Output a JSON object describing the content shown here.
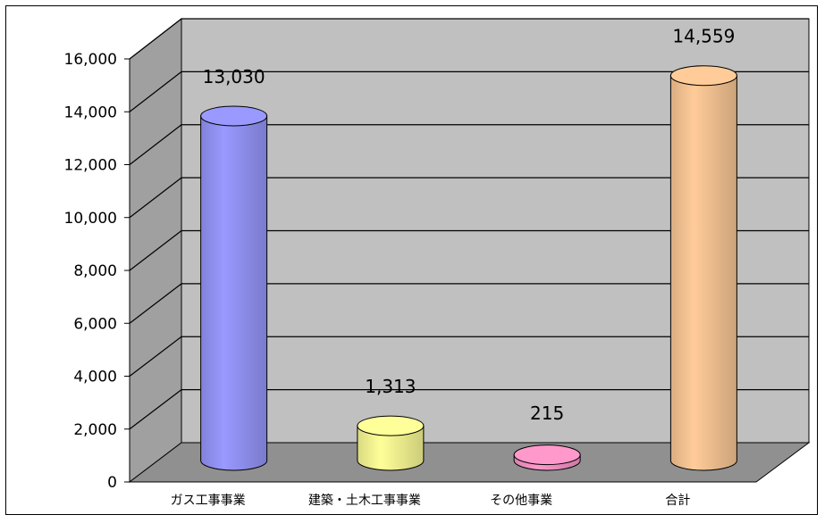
{
  "chart_data": {
    "type": "bar",
    "style": "3d-cylinder",
    "categories": [
      "ガス工事事業",
      "建築・土木工事事業",
      "その他事業",
      "合計"
    ],
    "values": [
      13030,
      1313,
      215,
      14559
    ],
    "data_labels": [
      "13,030",
      "1,313",
      "215",
      "14,559"
    ],
    "yticks": [
      "0",
      "2,000",
      "4,000",
      "6,000",
      "8,000",
      "10,000",
      "12,000",
      "14,000",
      "16,000"
    ],
    "ylim": [
      0,
      16000
    ],
    "grid": true,
    "legend": "none",
    "colors": {
      "bars": [
        "#9999ff",
        "#ffff99",
        "#ff99cc",
        "#ffcc99"
      ],
      "wall": "#c0c0c0",
      "side_wall": "#a0a0a0",
      "floor": "#909090"
    }
  }
}
